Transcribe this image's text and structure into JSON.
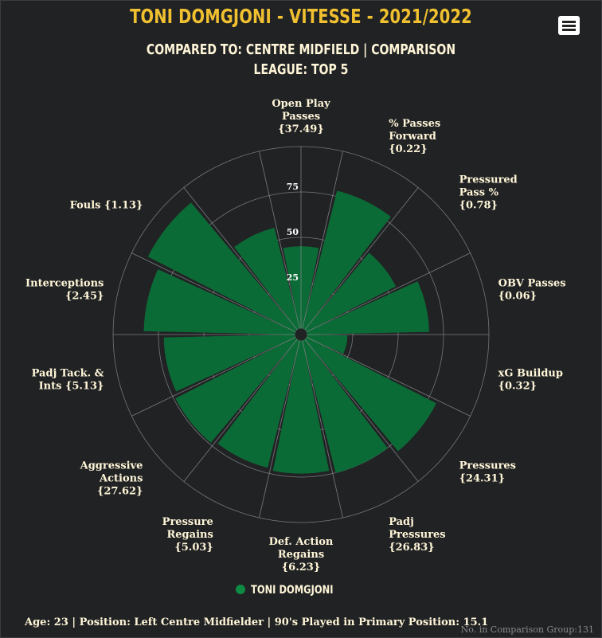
{
  "header": {
    "title": "TONI DOMGJONI - VITESSE - 2021/2022",
    "subtitle_line1": "COMPARED TO: CENTRE MIDFIELD | COMPARISON",
    "subtitle_line2": "LEAGUE: TOP 5"
  },
  "menu": {
    "icon": "hamburger-menu-icon"
  },
  "colors": {
    "bar": "#0b6b36",
    "legend_marker": "#0e8a44",
    "title": "#f0c030",
    "text": "#fff6d8",
    "grid": "#8a8c90"
  },
  "chart_data": {
    "type": "polar-bar",
    "radial_max": 100,
    "radial_ticks": [
      25,
      50,
      75
    ],
    "grid": true,
    "legend_position": "bottom",
    "series": [
      {
        "name": "TONI DOMGJONI",
        "values": [
          45,
          78,
          55,
          67,
          22,
          80,
          75,
          73,
          72,
          74,
          72,
          83,
          91,
          57
        ]
      }
    ],
    "categories": [
      {
        "label": [
          "Open Play",
          "Passes",
          "{37.49}"
        ],
        "value_label": "{37.49}"
      },
      {
        "label": [
          "% Passes",
          "Forward",
          "{0.22}"
        ],
        "value_label": "{0.22}"
      },
      {
        "label": [
          "Pressured",
          "Pass %",
          "{0.78}"
        ],
        "value_label": "{0.78}"
      },
      {
        "label": [
          "OBV Passes",
          "{0.06}"
        ],
        "value_label": "{0.06}"
      },
      {
        "label": [
          "xG Buildup",
          "{0.32}"
        ],
        "value_label": "{0.32}"
      },
      {
        "label": [
          "Pressures",
          "{24.31}"
        ],
        "value_label": "{24.31}"
      },
      {
        "label": [
          "Padj",
          "Pressures",
          "{26.83}"
        ],
        "value_label": "{26.83}"
      },
      {
        "label": [
          "Def. Action",
          "Regains",
          "{6.23}"
        ],
        "value_label": "{6.23}"
      },
      {
        "label": [
          "Pressure",
          "Regains",
          "{5.03}"
        ],
        "value_label": "{5.03}"
      },
      {
        "label": [
          "Aggressive",
          "Actions",
          "{27.62}"
        ],
        "value_label": "{27.62}"
      },
      {
        "label": [
          "Padj Tack. &",
          "Ints {5.13}"
        ],
        "value_label": "{5.13}"
      },
      {
        "label": [
          "Interceptions",
          "{2.45}"
        ],
        "value_label": "{2.45}"
      },
      {
        "label": [
          "Fouls {1.13}"
        ],
        "value_label": "{1.13}"
      },
      {
        "label": [],
        "value_label": ""
      }
    ]
  },
  "legend": {
    "label": "TONI DOMGJONI"
  },
  "footer": {
    "info": "Age: 23 | Position: Left Centre Midfielder | 90's Played in Primary Position: 15.1",
    "credits": "No. in Comparison Group:131"
  }
}
